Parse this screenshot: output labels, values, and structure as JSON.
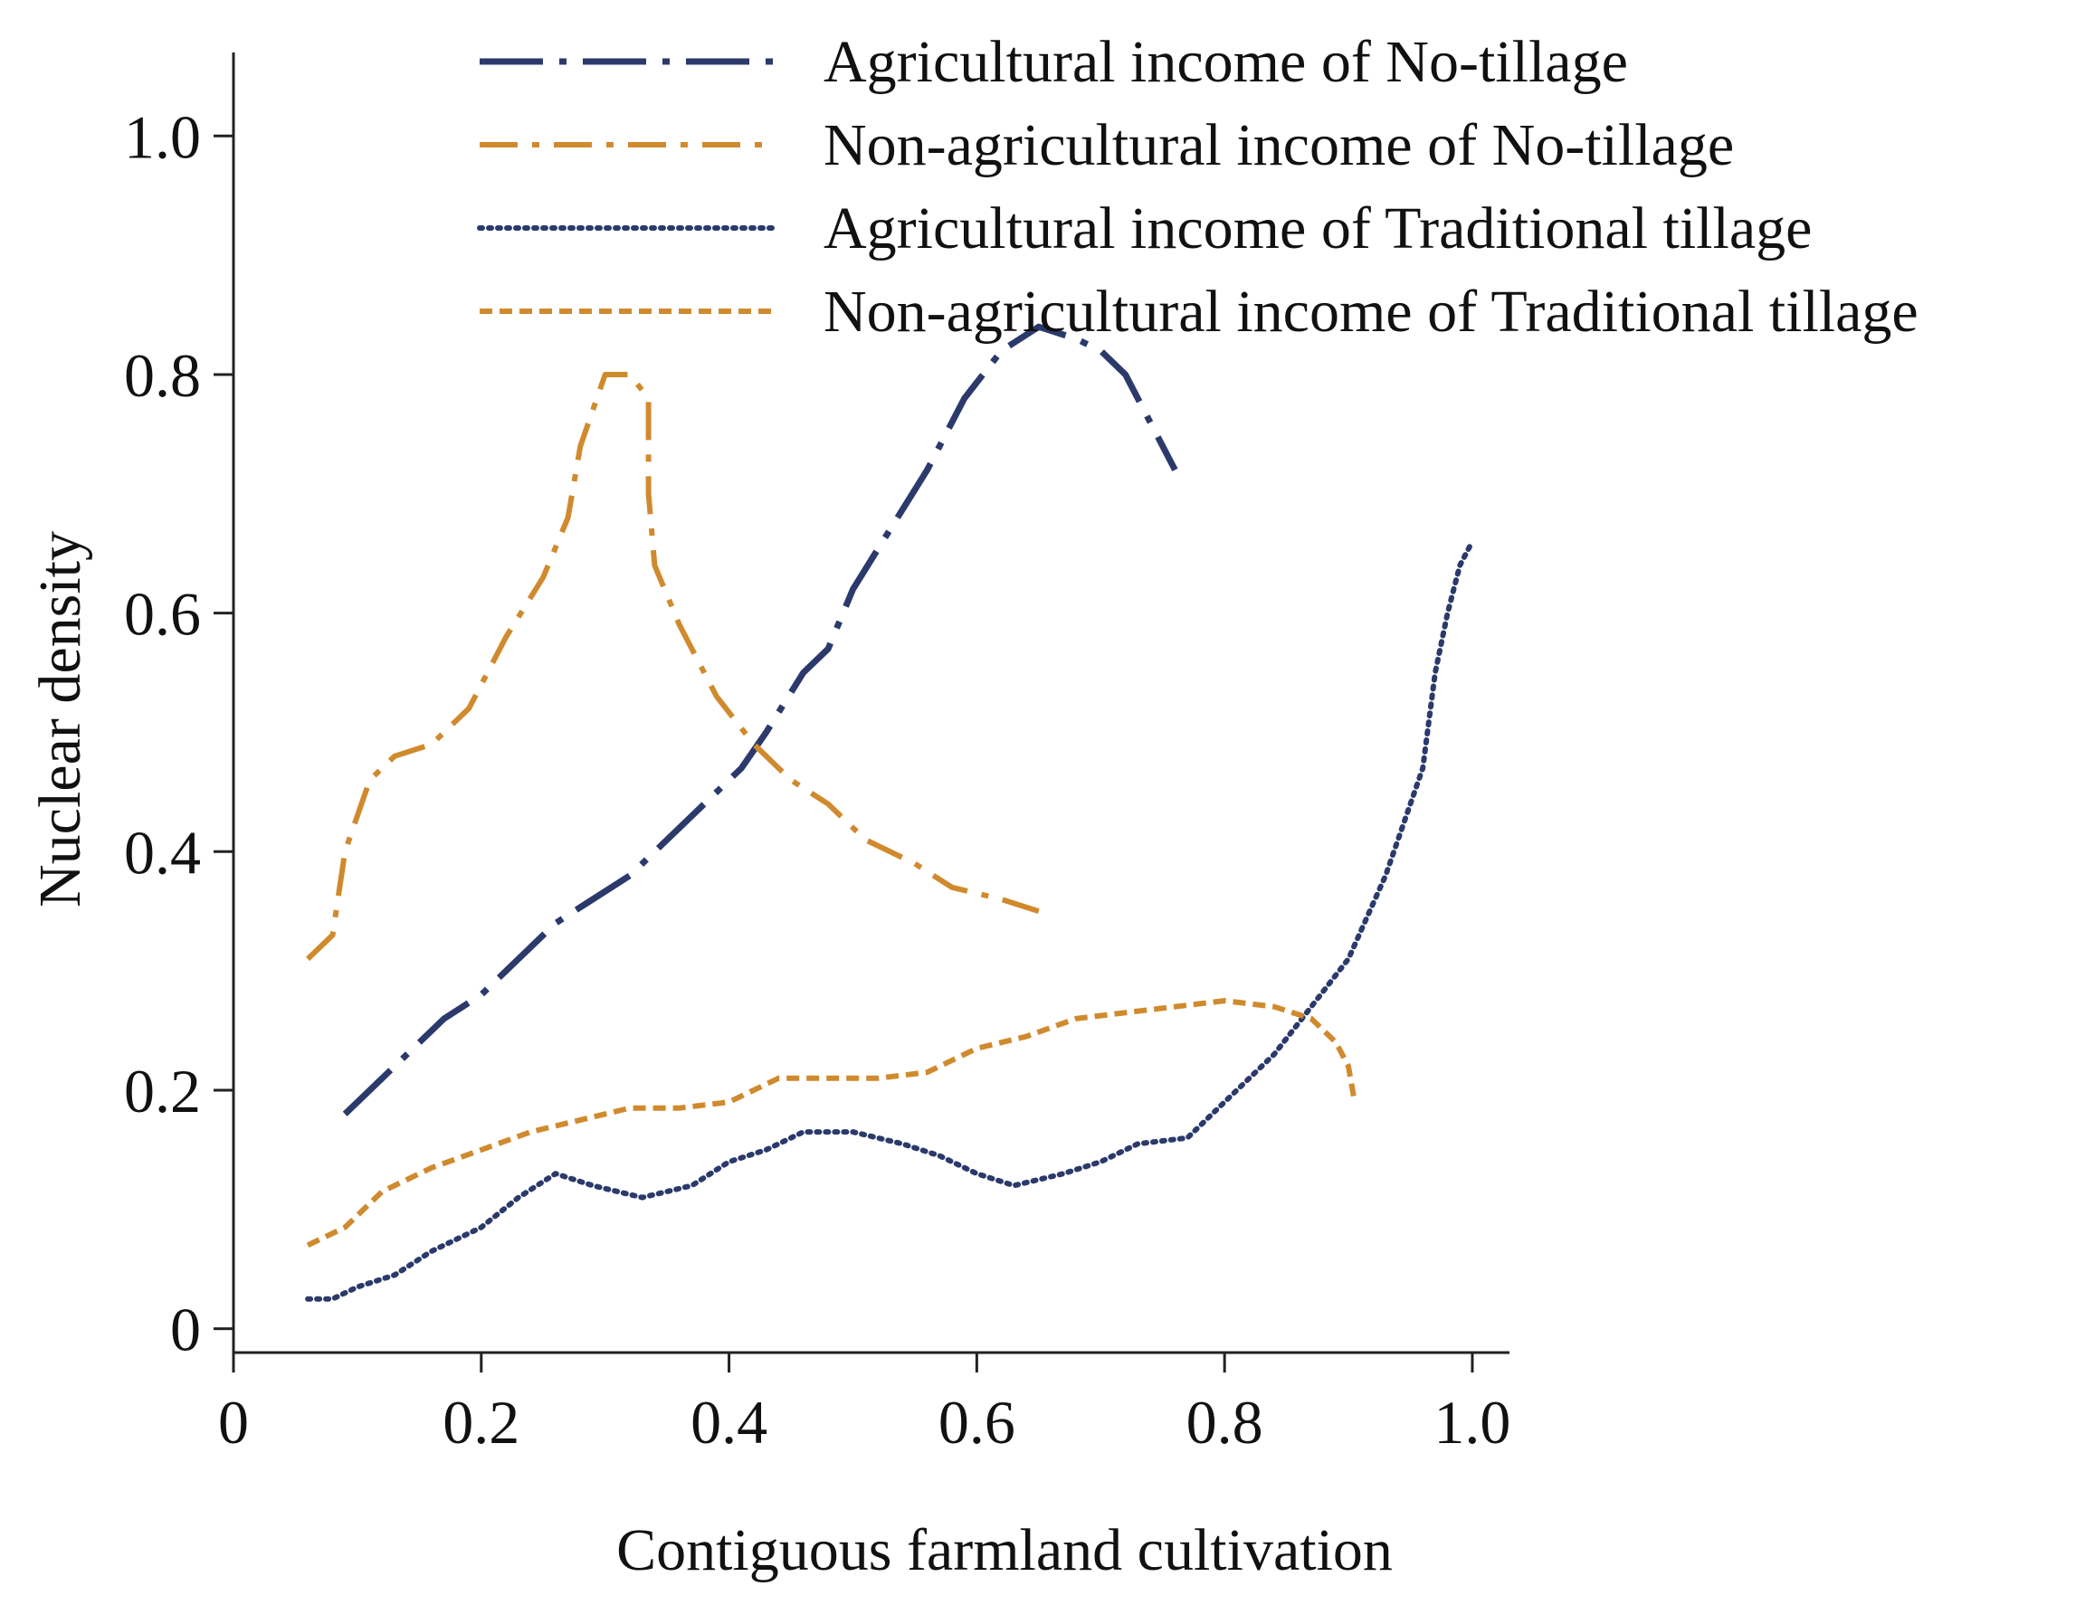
{
  "chart_data": {
    "type": "line",
    "title": "",
    "xlabel": "Contiguous farmland cultivation",
    "ylabel": "Nuclear density",
    "xlim": [
      0,
      1.03
    ],
    "ylim": [
      -0.02,
      1.07
    ],
    "x_ticks": [
      0,
      0.2,
      0.4,
      0.6,
      0.8,
      1.0
    ],
    "x_tick_labels": [
      "0",
      "0.2",
      "0.4",
      "0.6",
      "0.8",
      "1.0"
    ],
    "y_ticks": [
      0,
      0.2,
      0.4,
      0.6,
      0.8,
      1.0
    ],
    "y_tick_labels": [
      "0",
      "0.2",
      "0.4",
      "0.6",
      "0.8",
      "1.0"
    ],
    "grid": false,
    "legend_position": "top-right",
    "series": [
      {
        "name": "Agricultural income of No-tillage",
        "color": "#2b3a6b",
        "style": "long-dash-dot",
        "points": [
          [
            0.09,
            0.18
          ],
          [
            0.12,
            0.21
          ],
          [
            0.14,
            0.23
          ],
          [
            0.17,
            0.26
          ],
          [
            0.2,
            0.28
          ],
          [
            0.23,
            0.31
          ],
          [
            0.26,
            0.34
          ],
          [
            0.29,
            0.36
          ],
          [
            0.32,
            0.38
          ],
          [
            0.35,
            0.41
          ],
          [
            0.38,
            0.44
          ],
          [
            0.41,
            0.47
          ],
          [
            0.43,
            0.5
          ],
          [
            0.46,
            0.55
          ],
          [
            0.48,
            0.57
          ],
          [
            0.5,
            0.62
          ],
          [
            0.53,
            0.67
          ],
          [
            0.56,
            0.72
          ],
          [
            0.59,
            0.78
          ],
          [
            0.62,
            0.82
          ],
          [
            0.65,
            0.84
          ],
          [
            0.68,
            0.83
          ],
          [
            0.7,
            0.82
          ],
          [
            0.72,
            0.8
          ],
          [
            0.74,
            0.76
          ],
          [
            0.76,
            0.72
          ]
        ]
      },
      {
        "name": "Non-agricultural income of No-tillage",
        "color": "#d08a2e",
        "style": "dash-dot",
        "points": [
          [
            0.06,
            0.31
          ],
          [
            0.08,
            0.33
          ],
          [
            0.09,
            0.4
          ],
          [
            0.11,
            0.46
          ],
          [
            0.13,
            0.48
          ],
          [
            0.16,
            0.49
          ],
          [
            0.19,
            0.52
          ],
          [
            0.22,
            0.58
          ],
          [
            0.25,
            0.63
          ],
          [
            0.27,
            0.68
          ],
          [
            0.28,
            0.74
          ],
          [
            0.3,
            0.8
          ],
          [
            0.32,
            0.8
          ],
          [
            0.335,
            0.78
          ],
          [
            0.335,
            0.7
          ],
          [
            0.34,
            0.64
          ],
          [
            0.36,
            0.59
          ],
          [
            0.39,
            0.53
          ],
          [
            0.42,
            0.49
          ],
          [
            0.45,
            0.46
          ],
          [
            0.48,
            0.44
          ],
          [
            0.51,
            0.41
          ],
          [
            0.55,
            0.39
          ],
          [
            0.58,
            0.37
          ],
          [
            0.62,
            0.36
          ],
          [
            0.65,
            0.35
          ]
        ]
      },
      {
        "name": "Agricultural income of Traditional tillage",
        "color": "#2b3a6b",
        "style": "dotted",
        "points": [
          [
            0.06,
            0.025
          ],
          [
            0.08,
            0.025
          ],
          [
            0.1,
            0.035
          ],
          [
            0.13,
            0.045
          ],
          [
            0.16,
            0.065
          ],
          [
            0.2,
            0.085
          ],
          [
            0.23,
            0.11
          ],
          [
            0.26,
            0.13
          ],
          [
            0.29,
            0.12
          ],
          [
            0.33,
            0.11
          ],
          [
            0.37,
            0.12
          ],
          [
            0.4,
            0.14
          ],
          [
            0.43,
            0.15
          ],
          [
            0.46,
            0.165
          ],
          [
            0.5,
            0.165
          ],
          [
            0.54,
            0.155
          ],
          [
            0.57,
            0.145
          ],
          [
            0.6,
            0.13
          ],
          [
            0.63,
            0.12
          ],
          [
            0.67,
            0.13
          ],
          [
            0.7,
            0.14
          ],
          [
            0.73,
            0.155
          ],
          [
            0.77,
            0.16
          ],
          [
            0.8,
            0.19
          ],
          [
            0.84,
            0.23
          ],
          [
            0.87,
            0.27
          ],
          [
            0.9,
            0.31
          ],
          [
            0.93,
            0.38
          ],
          [
            0.95,
            0.44
          ],
          [
            0.96,
            0.47
          ],
          [
            0.97,
            0.55
          ],
          [
            0.98,
            0.6
          ],
          [
            0.99,
            0.64
          ],
          [
            1.0,
            0.66
          ]
        ]
      },
      {
        "name": "Non-agricultural income of Traditional tillage",
        "color": "#d08a2e",
        "style": "dashed",
        "points": [
          [
            0.06,
            0.07
          ],
          [
            0.09,
            0.085
          ],
          [
            0.12,
            0.115
          ],
          [
            0.16,
            0.135
          ],
          [
            0.2,
            0.15
          ],
          [
            0.24,
            0.165
          ],
          [
            0.28,
            0.175
          ],
          [
            0.32,
            0.185
          ],
          [
            0.36,
            0.185
          ],
          [
            0.4,
            0.19
          ],
          [
            0.44,
            0.21
          ],
          [
            0.48,
            0.21
          ],
          [
            0.52,
            0.21
          ],
          [
            0.56,
            0.215
          ],
          [
            0.6,
            0.235
          ],
          [
            0.64,
            0.245
          ],
          [
            0.68,
            0.26
          ],
          [
            0.72,
            0.265
          ],
          [
            0.76,
            0.27
          ],
          [
            0.8,
            0.275
          ],
          [
            0.84,
            0.27
          ],
          [
            0.87,
            0.26
          ],
          [
            0.89,
            0.24
          ],
          [
            0.9,
            0.22
          ],
          [
            0.905,
            0.19
          ]
        ]
      }
    ]
  }
}
